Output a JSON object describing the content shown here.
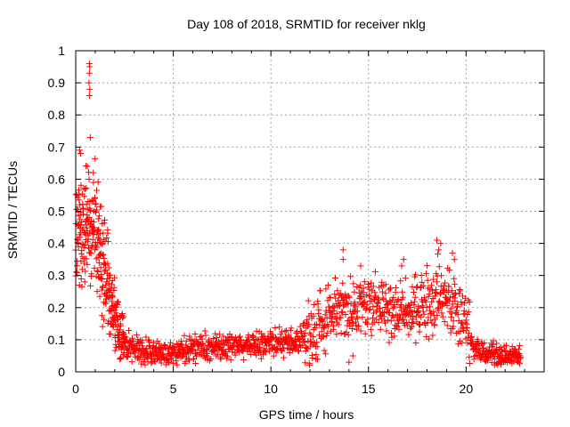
{
  "chart_data": {
    "type": "scatter",
    "title": "Day 108 of 2018, SRMTID for receiver nklg",
    "xlabel": "GPS time / hours",
    "ylabel": "SRMTID / TECUs",
    "xlim": [
      0,
      24
    ],
    "ylim": [
      0,
      1
    ],
    "x_ticks": [
      0,
      5,
      10,
      15,
      20
    ],
    "x_tick_labels": [
      "0",
      "5",
      "10",
      "15",
      "20"
    ],
    "y_ticks": [
      0,
      0.1,
      0.2,
      0.3,
      0.4,
      0.5,
      0.6,
      0.7,
      0.8,
      0.9,
      1
    ],
    "y_tick_labels": [
      "0",
      "0.1",
      "0.2",
      "0.3",
      "0.4",
      "0.5",
      "0.6",
      "0.7",
      "0.8",
      "0.9",
      "1"
    ],
    "grid": true,
    "marker": "+",
    "color": "#ff0000",
    "x_range_of_data": [
      0,
      22.8
    ],
    "series_profile": {
      "description_hours": [
        0,
        0.5,
        1.0,
        1.5,
        1.8,
        2.2,
        2.5,
        4,
        6,
        8,
        10,
        11.5,
        12,
        13,
        14,
        15,
        16,
        17,
        18,
        18.6,
        19.3,
        20,
        20.4,
        21,
        22,
        22.8
      ],
      "typical_values": [
        0.42,
        0.45,
        0.47,
        0.32,
        0.22,
        0.12,
        0.08,
        0.06,
        0.07,
        0.08,
        0.09,
        0.1,
        0.12,
        0.17,
        0.2,
        0.21,
        0.2,
        0.19,
        0.21,
        0.24,
        0.21,
        0.15,
        0.07,
        0.06,
        0.05,
        0.05
      ]
    },
    "notable_points": [
      {
        "x": 0.7,
        "y": 0.96
      },
      {
        "x": 0.72,
        "y": 0.95
      },
      {
        "x": 0.7,
        "y": 0.93
      },
      {
        "x": 0.68,
        "y": 0.9
      },
      {
        "x": 0.72,
        "y": 0.88
      },
      {
        "x": 0.7,
        "y": 0.86
      },
      {
        "x": 0.75,
        "y": 0.73
      },
      {
        "x": 0.2,
        "y": 0.69
      },
      {
        "x": 0.25,
        "y": 0.68
      },
      {
        "x": 0.9,
        "y": 0.62
      },
      {
        "x": 0.6,
        "y": 0.64
      },
      {
        "x": 13.7,
        "y": 0.38
      },
      {
        "x": 13.7,
        "y": 0.35
      },
      {
        "x": 14.6,
        "y": 0.33
      },
      {
        "x": 16.8,
        "y": 0.35
      },
      {
        "x": 16.7,
        "y": 0.33
      },
      {
        "x": 18.5,
        "y": 0.41
      },
      {
        "x": 18.7,
        "y": 0.4
      },
      {
        "x": 18.6,
        "y": 0.38
      },
      {
        "x": 19.3,
        "y": 0.37
      },
      {
        "x": 19.4,
        "y": 0.35
      },
      {
        "x": 14.0,
        "y": 0.03
      },
      {
        "x": 14.2,
        "y": 0.05
      }
    ]
  }
}
